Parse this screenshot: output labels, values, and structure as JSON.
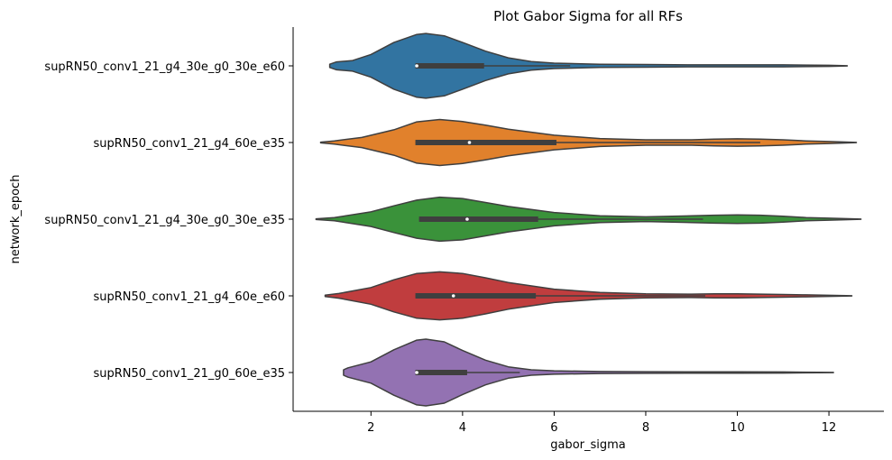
{
  "chart_data": {
    "type": "violin",
    "orientation": "horizontal",
    "title": "Plot Gabor Sigma for all RFs",
    "xlabel": "gabor_sigma",
    "ylabel": "network_epoch",
    "xlim": [
      0.3,
      13.2
    ],
    "xticks": [
      2,
      4,
      6,
      8,
      10,
      12
    ],
    "grid": false,
    "categories": [
      "supRN50_conv1_21_g4_30e_g0_30e_e60",
      "supRN50_conv1_21_g4_60e_e35",
      "supRN50_conv1_21_g4_30e_g0_30e_e35",
      "supRN50_conv1_21_g4_60e_e60",
      "supRN50_conv1_21_g0_60e_e35"
    ],
    "series": [
      {
        "color": "#3274a1",
        "range": [
          1.1,
          12.4
        ],
        "box": {
          "q1": 2.97,
          "median": 3.0,
          "q3": 4.47,
          "whisker_low": 2.97,
          "whisker_high": 6.35
        },
        "density": [
          [
            1.1,
            0.05
          ],
          [
            1.25,
            0.12
          ],
          [
            1.6,
            0.16
          ],
          [
            2.0,
            0.34
          ],
          [
            2.5,
            0.7
          ],
          [
            3.0,
            0.94
          ],
          [
            3.2,
            0.97
          ],
          [
            3.6,
            0.9
          ],
          [
            4.0,
            0.7
          ],
          [
            4.5,
            0.44
          ],
          [
            5.0,
            0.24
          ],
          [
            5.5,
            0.13
          ],
          [
            6.0,
            0.08
          ],
          [
            7.0,
            0.05
          ],
          [
            8.0,
            0.04
          ],
          [
            9.0,
            0.03
          ],
          [
            10.0,
            0.03
          ],
          [
            11.0,
            0.03
          ],
          [
            12.0,
            0.015
          ],
          [
            12.4,
            0.004
          ]
        ]
      },
      {
        "color": "#e1812c",
        "range": [
          0.9,
          12.6
        ],
        "box": {
          "q1": 2.97,
          "median": 4.15,
          "q3": 6.05,
          "whisker_low": 2.97,
          "whisker_high": 10.5
        },
        "density": [
          [
            0.9,
            0.01
          ],
          [
            1.2,
            0.05
          ],
          [
            1.8,
            0.15
          ],
          [
            2.5,
            0.38
          ],
          [
            3.0,
            0.62
          ],
          [
            3.5,
            0.69
          ],
          [
            4.0,
            0.63
          ],
          [
            4.5,
            0.52
          ],
          [
            5.0,
            0.4
          ],
          [
            6.0,
            0.22
          ],
          [
            7.0,
            0.12
          ],
          [
            8.0,
            0.08
          ],
          [
            9.0,
            0.08
          ],
          [
            9.5,
            0.1
          ],
          [
            10.0,
            0.11
          ],
          [
            10.5,
            0.1
          ],
          [
            11.0,
            0.08
          ],
          [
            11.5,
            0.05
          ],
          [
            12.0,
            0.03
          ],
          [
            12.6,
            0.004
          ]
        ]
      },
      {
        "color": "#3a923a",
        "range": [
          0.8,
          12.7
        ],
        "box": {
          "q1": 3.05,
          "median": 4.1,
          "q3": 5.65,
          "whisker_low": 3.05,
          "whisker_high": 9.25
        },
        "density": [
          [
            0.8,
            0.01
          ],
          [
            1.2,
            0.05
          ],
          [
            2.0,
            0.22
          ],
          [
            2.5,
            0.4
          ],
          [
            3.0,
            0.57
          ],
          [
            3.5,
            0.66
          ],
          [
            4.0,
            0.62
          ],
          [
            4.5,
            0.5
          ],
          [
            5.0,
            0.38
          ],
          [
            6.0,
            0.2
          ],
          [
            7.0,
            0.1
          ],
          [
            8.0,
            0.07
          ],
          [
            9.0,
            0.1
          ],
          [
            9.5,
            0.12
          ],
          [
            10.0,
            0.13
          ],
          [
            10.5,
            0.12
          ],
          [
            11.0,
            0.09
          ],
          [
            11.5,
            0.05
          ],
          [
            12.0,
            0.03
          ],
          [
            12.7,
            0.004
          ]
        ]
      },
      {
        "color": "#c03d3e",
        "range": [
          1.0,
          12.5
        ],
        "box": {
          "q1": 2.97,
          "median": 3.8,
          "q3": 5.6,
          "whisker_low": 2.97,
          "whisker_high": 9.3
        },
        "density": [
          [
            1.0,
            0.02
          ],
          [
            1.3,
            0.07
          ],
          [
            2.0,
            0.25
          ],
          [
            2.5,
            0.48
          ],
          [
            3.0,
            0.67
          ],
          [
            3.5,
            0.72
          ],
          [
            4.0,
            0.67
          ],
          [
            4.5,
            0.54
          ],
          [
            5.0,
            0.4
          ],
          [
            6.0,
            0.2
          ],
          [
            7.0,
            0.1
          ],
          [
            8.0,
            0.06
          ],
          [
            9.0,
            0.05
          ],
          [
            9.5,
            0.06
          ],
          [
            10.0,
            0.06
          ],
          [
            10.5,
            0.05
          ],
          [
            11.0,
            0.04
          ],
          [
            11.5,
            0.03
          ],
          [
            12.0,
            0.015
          ],
          [
            12.5,
            0.004
          ]
        ]
      },
      {
        "color": "#9372b2",
        "range": [
          1.4,
          12.1
        ],
        "box": {
          "q1": 2.97,
          "median": 3.0,
          "q3": 4.1,
          "whisker_low": 2.97,
          "whisker_high": 5.25
        },
        "density": [
          [
            1.4,
            0.08
          ],
          [
            1.5,
            0.14
          ],
          [
            2.0,
            0.32
          ],
          [
            2.5,
            0.68
          ],
          [
            3.0,
            0.97
          ],
          [
            3.2,
            1.0
          ],
          [
            3.6,
            0.92
          ],
          [
            4.0,
            0.66
          ],
          [
            4.5,
            0.37
          ],
          [
            5.0,
            0.17
          ],
          [
            5.5,
            0.08
          ],
          [
            6.0,
            0.05
          ],
          [
            7.0,
            0.03
          ],
          [
            8.0,
            0.025
          ],
          [
            9.0,
            0.02
          ],
          [
            10.0,
            0.02
          ],
          [
            11.0,
            0.015
          ],
          [
            12.1,
            0.004
          ]
        ]
      }
    ]
  }
}
